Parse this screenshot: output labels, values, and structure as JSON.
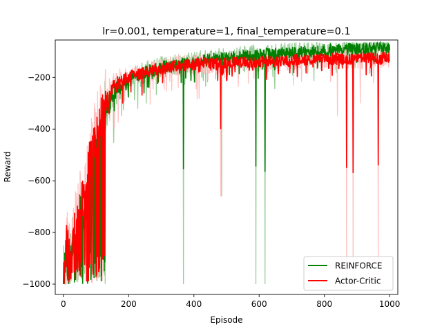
{
  "chart_data": {
    "type": "line",
    "title": "lr=0.001, temperature=1, final_temperature=0.1",
    "xlabel": "Episode",
    "ylabel": "Reward",
    "xlim": [
      -25,
      1025
    ],
    "ylim": [
      -1040,
      -55
    ],
    "xticks": [
      0,
      200,
      400,
      600,
      800,
      1000
    ],
    "yticks": [
      -1000,
      -800,
      -600,
      -400,
      -200
    ],
    "grid": false,
    "legend_position": "lower-right",
    "series": [
      {
        "name": "REINFORCE",
        "color": "#008000",
        "raw_color": "#8fc98f",
        "anchors": [
          [
            0,
            -1000
          ],
          [
            10,
            -900
          ],
          [
            20,
            -950
          ],
          [
            30,
            -850
          ],
          [
            40,
            -850
          ],
          [
            50,
            -750
          ],
          [
            60,
            -720
          ],
          [
            70,
            -680
          ],
          [
            80,
            -600
          ],
          [
            90,
            -540
          ],
          [
            100,
            -500
          ],
          [
            110,
            -470
          ],
          [
            120,
            -420
          ],
          [
            130,
            -330
          ],
          [
            140,
            -300
          ],
          [
            150,
            -270
          ],
          [
            160,
            -250
          ],
          [
            180,
            -230
          ],
          [
            200,
            -210
          ],
          [
            230,
            -190
          ],
          [
            260,
            -175
          ],
          [
            300,
            -160
          ],
          [
            350,
            -150
          ],
          [
            400,
            -140
          ],
          [
            450,
            -130
          ],
          [
            500,
            -125
          ],
          [
            550,
            -118
          ],
          [
            600,
            -112
          ],
          [
            650,
            -108
          ],
          [
            700,
            -103
          ],
          [
            750,
            -100
          ],
          [
            800,
            -95
          ],
          [
            850,
            -92
          ],
          [
            900,
            -88
          ],
          [
            950,
            -85
          ],
          [
            1000,
            -82
          ]
        ],
        "spikes": [
          [
            368,
            -555
          ],
          [
            590,
            -545
          ],
          [
            618,
            -565
          ]
        ],
        "raw_spikes": [
          [
            368,
            -1000
          ],
          [
            590,
            -1000
          ],
          [
            618,
            -1000
          ],
          [
            485,
            -660
          ]
        ]
      },
      {
        "name": "Actor-Critic",
        "color": "#ff0000",
        "raw_color": "#ffbcbc",
        "anchors": [
          [
            0,
            -1000
          ],
          [
            10,
            -850
          ],
          [
            20,
            -900
          ],
          [
            30,
            -800
          ],
          [
            40,
            -750
          ],
          [
            50,
            -700
          ],
          [
            60,
            -650
          ],
          [
            70,
            -600
          ],
          [
            80,
            -520
          ],
          [
            90,
            -450
          ],
          [
            100,
            -420
          ],
          [
            110,
            -380
          ],
          [
            120,
            -340
          ],
          [
            130,
            -300
          ],
          [
            140,
            -270
          ],
          [
            150,
            -250
          ],
          [
            170,
            -220
          ],
          [
            200,
            -200
          ],
          [
            250,
            -180
          ],
          [
            300,
            -165
          ],
          [
            350,
            -155
          ],
          [
            400,
            -148
          ],
          [
            450,
            -145
          ],
          [
            500,
            -142
          ],
          [
            550,
            -140
          ],
          [
            600,
            -138
          ],
          [
            650,
            -135
          ],
          [
            700,
            -133
          ],
          [
            750,
            -132
          ],
          [
            800,
            -130
          ],
          [
            850,
            -128
          ],
          [
            900,
            -127
          ],
          [
            950,
            -126
          ],
          [
            1000,
            -125
          ]
        ],
        "spikes": [
          [
            482,
            -400
          ],
          [
            868,
            -550
          ],
          [
            888,
            -570
          ],
          [
            965,
            -540
          ]
        ],
        "raw_spikes": [
          [
            482,
            -660
          ],
          [
            868,
            -1000
          ],
          [
            888,
            -1000
          ],
          [
            965,
            -1000
          ],
          [
            840,
            -350
          ],
          [
            910,
            -300
          ]
        ]
      }
    ]
  }
}
